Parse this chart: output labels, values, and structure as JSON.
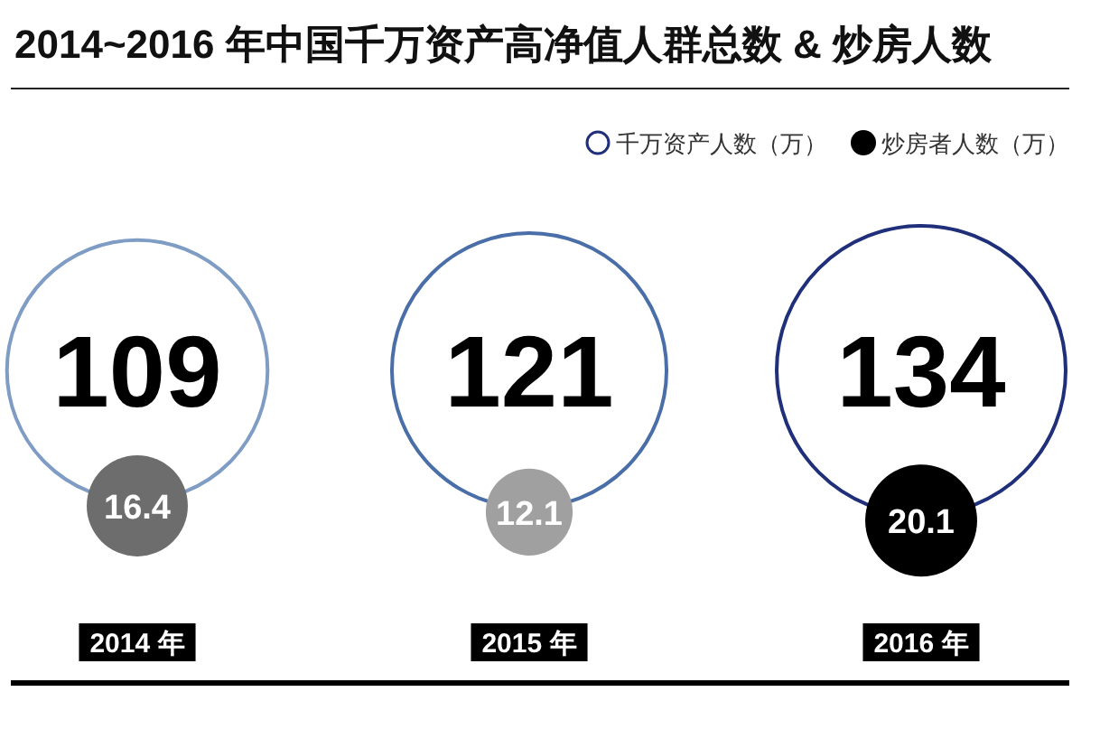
{
  "chart_data": {
    "type": "other",
    "title": "2014~2016 年中国千万资产高净值人群总数 & 炒房人数",
    "categories": [
      "2014 年",
      "2015 年",
      "2016 年"
    ],
    "series": [
      {
        "name": "千万资产人数（万）",
        "color": "#1f2f7a",
        "colors": [
          "#7f9cc4",
          "#4a6ea8",
          "#1f2f7a"
        ],
        "values": [
          109,
          121,
          134
        ]
      },
      {
        "name": "炒房者人数（万）",
        "color": "#000000",
        "colors": [
          "#6d6d6d",
          "#a0a0a0",
          "#000000"
        ],
        "values": [
          16.4,
          12.1,
          20.1
        ]
      }
    ],
    "data_labels": true,
    "legend": "top right"
  }
}
